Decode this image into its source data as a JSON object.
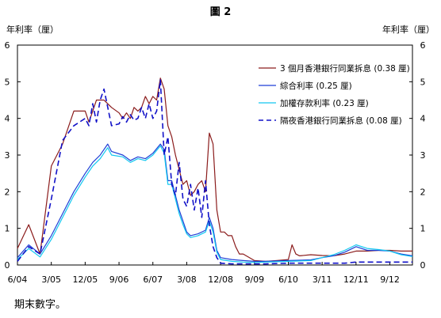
{
  "chart_data": {
    "type": "line",
    "title": "圖 2",
    "ylabel_left": "年利率（厘）",
    "ylabel_right": "年利率（厘）",
    "ylim": [
      0,
      6
    ],
    "yticks": [
      0,
      1,
      2,
      3,
      4,
      5,
      6
    ],
    "xlim": [
      "2004-06",
      "2013-03"
    ],
    "xticks": [
      {
        "date": "2004-06",
        "label": "6/04"
      },
      {
        "date": "2005-03",
        "label": "3/05"
      },
      {
        "date": "2005-12",
        "label": "12/05"
      },
      {
        "date": "2006-09",
        "label": "9/06"
      },
      {
        "date": "2007-06",
        "label": "6/07"
      },
      {
        "date": "2008-03",
        "label": "3/08"
      },
      {
        "date": "2008-12",
        "label": "12/08"
      },
      {
        "date": "2009-09",
        "label": "9/09"
      },
      {
        "date": "2010-06",
        "label": "6/10"
      },
      {
        "date": "2011-03",
        "label": "3/11"
      },
      {
        "date": "2011-12",
        "label": "12/11"
      },
      {
        "date": "2012-09",
        "label": "9/12"
      }
    ],
    "grid": false,
    "legend": "top-right",
    "series": [
      {
        "name": "3 個月香港銀行同業拆息 (0.38 厘)",
        "color": "#8b1c1c",
        "dash": "solid",
        "points": [
          [
            "2004-06",
            0.45
          ],
          [
            "2004-09",
            1.1
          ],
          [
            "2004-12",
            0.3
          ],
          [
            "2005-03",
            2.7
          ],
          [
            "2005-06",
            3.3
          ],
          [
            "2005-09",
            4.2
          ],
          [
            "2005-12",
            4.2
          ],
          [
            "2006-01",
            3.9
          ],
          [
            "2006-02",
            4.2
          ],
          [
            "2006-03",
            4.5
          ],
          [
            "2006-05",
            4.5
          ],
          [
            "2006-07",
            4.3
          ],
          [
            "2006-09",
            4.15
          ],
          [
            "2006-10",
            4.0
          ],
          [
            "2006-11",
            4.15
          ],
          [
            "2006-12",
            4.0
          ],
          [
            "2007-01",
            4.3
          ],
          [
            "2007-02",
            4.2
          ],
          [
            "2007-03",
            4.3
          ],
          [
            "2007-04",
            4.6
          ],
          [
            "2007-05",
            4.4
          ],
          [
            "2007-06",
            4.6
          ],
          [
            "2007-07",
            4.5
          ],
          [
            "2007-08",
            5.1
          ],
          [
            "2007-09",
            4.8
          ],
          [
            "2007-10",
            3.8
          ],
          [
            "2007-11",
            3.5
          ],
          [
            "2007-12",
            3.0
          ],
          [
            "2008-01",
            2.6
          ],
          [
            "2008-02",
            2.2
          ],
          [
            "2008-03",
            2.3
          ],
          [
            "2008-04",
            1.9
          ],
          [
            "2008-05",
            2.0
          ],
          [
            "2008-06",
            2.2
          ],
          [
            "2008-07",
            2.3
          ],
          [
            "2008-08",
            2.0
          ],
          [
            "2008-09",
            3.6
          ],
          [
            "2008-10",
            3.3
          ],
          [
            "2008-11",
            1.5
          ],
          [
            "2008-12",
            0.9
          ],
          [
            "2009-01",
            0.9
          ],
          [
            "2009-02",
            0.8
          ],
          [
            "2009-03",
            0.8
          ],
          [
            "2009-04",
            0.5
          ],
          [
            "2009-05",
            0.3
          ],
          [
            "2009-06",
            0.3
          ],
          [
            "2009-09",
            0.12
          ],
          [
            "2009-12",
            0.1
          ],
          [
            "2010-03",
            0.12
          ],
          [
            "2010-06",
            0.15
          ],
          [
            "2010-07",
            0.55
          ],
          [
            "2010-08",
            0.3
          ],
          [
            "2010-09",
            0.25
          ],
          [
            "2010-12",
            0.28
          ],
          [
            "2011-03",
            0.26
          ],
          [
            "2011-06",
            0.25
          ],
          [
            "2011-09",
            0.3
          ],
          [
            "2011-12",
            0.38
          ],
          [
            "2012-03",
            0.38
          ],
          [
            "2012-06",
            0.4
          ],
          [
            "2012-09",
            0.4
          ],
          [
            "2012-12",
            0.38
          ],
          [
            "2013-03",
            0.38
          ]
        ]
      },
      {
        "name": "綜合利率 (0.25 厘)",
        "color": "#1f3fd6",
        "dash": "solid",
        "points": [
          [
            "2004-06",
            0.2
          ],
          [
            "2004-09",
            0.55
          ],
          [
            "2004-12",
            0.3
          ],
          [
            "2005-03",
            0.8
          ],
          [
            "2005-06",
            1.4
          ],
          [
            "2005-09",
            2.0
          ],
          [
            "2005-12",
            2.5
          ],
          [
            "2006-02",
            2.8
          ],
          [
            "2006-04",
            3.0
          ],
          [
            "2006-06",
            3.3
          ],
          [
            "2006-07",
            3.1
          ],
          [
            "2006-10",
            3.0
          ],
          [
            "2006-12",
            2.85
          ],
          [
            "2007-02",
            2.95
          ],
          [
            "2007-04",
            2.9
          ],
          [
            "2007-06",
            3.05
          ],
          [
            "2007-08",
            3.3
          ],
          [
            "2007-09",
            3.15
          ],
          [
            "2007-10",
            2.3
          ],
          [
            "2007-11",
            2.3
          ],
          [
            "2007-12",
            1.9
          ],
          [
            "2008-01",
            1.5
          ],
          [
            "2008-02",
            1.2
          ],
          [
            "2008-03",
            0.9
          ],
          [
            "2008-04",
            0.8
          ],
          [
            "2008-06",
            0.85
          ],
          [
            "2008-08",
            0.95
          ],
          [
            "2008-09",
            1.3
          ],
          [
            "2008-10",
            1.0
          ],
          [
            "2008-11",
            0.4
          ],
          [
            "2008-12",
            0.2
          ],
          [
            "2009-03",
            0.15
          ],
          [
            "2009-06",
            0.12
          ],
          [
            "2009-09",
            0.1
          ],
          [
            "2009-12",
            0.1
          ],
          [
            "2010-06",
            0.12
          ],
          [
            "2010-12",
            0.14
          ],
          [
            "2011-03",
            0.2
          ],
          [
            "2011-06",
            0.25
          ],
          [
            "2011-09",
            0.35
          ],
          [
            "2011-12",
            0.5
          ],
          [
            "2012-03",
            0.4
          ],
          [
            "2012-06",
            0.4
          ],
          [
            "2012-09",
            0.38
          ],
          [
            "2012-12",
            0.3
          ],
          [
            "2013-03",
            0.25
          ]
        ]
      },
      {
        "name": "加權存款利率 (0.23 厘)",
        "color": "#11c8f0",
        "dash": "solid",
        "points": [
          [
            "2004-06",
            0.15
          ],
          [
            "2004-09",
            0.45
          ],
          [
            "2004-12",
            0.22
          ],
          [
            "2005-03",
            0.7
          ],
          [
            "2005-06",
            1.3
          ],
          [
            "2005-09",
            1.9
          ],
          [
            "2005-12",
            2.4
          ],
          [
            "2006-02",
            2.7
          ],
          [
            "2006-04",
            2.9
          ],
          [
            "2006-06",
            3.2
          ],
          [
            "2006-07",
            3.0
          ],
          [
            "2006-10",
            2.95
          ],
          [
            "2006-12",
            2.8
          ],
          [
            "2007-02",
            2.9
          ],
          [
            "2007-04",
            2.85
          ],
          [
            "2007-06",
            3.0
          ],
          [
            "2007-08",
            3.25
          ],
          [
            "2007-09",
            3.05
          ],
          [
            "2007-10",
            2.2
          ],
          [
            "2007-11",
            2.2
          ],
          [
            "2007-12",
            1.8
          ],
          [
            "2008-01",
            1.4
          ],
          [
            "2008-02",
            1.1
          ],
          [
            "2008-03",
            0.85
          ],
          [
            "2008-04",
            0.75
          ],
          [
            "2008-06",
            0.8
          ],
          [
            "2008-08",
            0.9
          ],
          [
            "2008-09",
            1.2
          ],
          [
            "2008-10",
            0.9
          ],
          [
            "2008-11",
            0.35
          ],
          [
            "2008-12",
            0.15
          ],
          [
            "2009-03",
            0.1
          ],
          [
            "2009-06",
            0.08
          ],
          [
            "2009-09",
            0.07
          ],
          [
            "2009-12",
            0.08
          ],
          [
            "2010-06",
            0.1
          ],
          [
            "2010-12",
            0.12
          ],
          [
            "2011-03",
            0.2
          ],
          [
            "2011-06",
            0.28
          ],
          [
            "2011-09",
            0.4
          ],
          [
            "2011-12",
            0.55
          ],
          [
            "2012-03",
            0.45
          ],
          [
            "2012-06",
            0.42
          ],
          [
            "2012-09",
            0.38
          ],
          [
            "2012-12",
            0.28
          ],
          [
            "2013-03",
            0.23
          ]
        ]
      },
      {
        "name": "隔夜香港銀行同業拆息 (0.08 厘)",
        "color": "#1111c8",
        "dash": "dashed",
        "points": [
          [
            "2004-06",
            0.1
          ],
          [
            "2004-09",
            0.5
          ],
          [
            "2004-12",
            0.3
          ],
          [
            "2005-03",
            1.8
          ],
          [
            "2005-06",
            3.4
          ],
          [
            "2005-09",
            3.8
          ],
          [
            "2005-12",
            4.0
          ],
          [
            "2006-01",
            3.8
          ],
          [
            "2006-02",
            4.4
          ],
          [
            "2006-03",
            3.9
          ],
          [
            "2006-04",
            4.5
          ],
          [
            "2006-05",
            4.8
          ],
          [
            "2006-07",
            3.8
          ],
          [
            "2006-09",
            3.85
          ],
          [
            "2006-10",
            4.05
          ],
          [
            "2006-11",
            3.9
          ],
          [
            "2006-12",
            4.1
          ],
          [
            "2007-01",
            3.95
          ],
          [
            "2007-02",
            4.0
          ],
          [
            "2007-03",
            4.3
          ],
          [
            "2007-04",
            4.0
          ],
          [
            "2007-05",
            4.4
          ],
          [
            "2007-06",
            4.0
          ],
          [
            "2007-07",
            4.2
          ],
          [
            "2007-08",
            5.05
          ],
          [
            "2007-09",
            3.0
          ],
          [
            "2007-10",
            3.5
          ],
          [
            "2007-11",
            2.2
          ],
          [
            "2007-12",
            1.9
          ],
          [
            "2008-01",
            2.8
          ],
          [
            "2008-02",
            1.8
          ],
          [
            "2008-03",
            1.6
          ],
          [
            "2008-04",
            2.2
          ],
          [
            "2008-05",
            1.5
          ],
          [
            "2008-06",
            2.1
          ],
          [
            "2008-07",
            1.3
          ],
          [
            "2008-08",
            2.3
          ],
          [
            "2008-09",
            1.1
          ],
          [
            "2008-10",
            0.5
          ],
          [
            "2008-11",
            0.2
          ],
          [
            "2008-12",
            0.05
          ],
          [
            "2009-03",
            0.03
          ],
          [
            "2009-06",
            0.03
          ],
          [
            "2009-09",
            0.03
          ],
          [
            "2009-12",
            0.03
          ],
          [
            "2010-06",
            0.05
          ],
          [
            "2010-12",
            0.05
          ],
          [
            "2011-03",
            0.05
          ],
          [
            "2011-06",
            0.05
          ],
          [
            "2011-09",
            0.05
          ],
          [
            "2011-12",
            0.08
          ],
          [
            "2012-03",
            0.08
          ],
          [
            "2012-06",
            0.08
          ],
          [
            "2012-09",
            0.08
          ],
          [
            "2012-12",
            0.08
          ],
          [
            "2013-03",
            0.08
          ]
        ]
      }
    ]
  },
  "footnote": "期末數字。"
}
